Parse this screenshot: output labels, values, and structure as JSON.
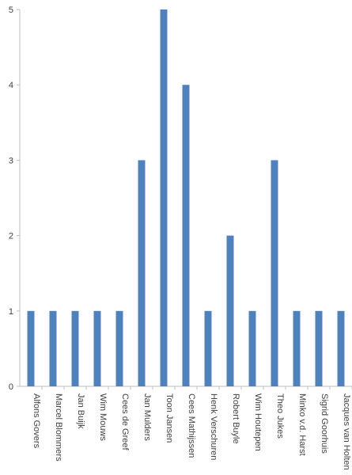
{
  "chart_data": {
    "type": "bar",
    "title": "",
    "xlabel": "",
    "ylabel": "",
    "ylim": [
      0,
      5
    ],
    "yticks": [
      0,
      1,
      2,
      3,
      4,
      5
    ],
    "grid": false,
    "legend": "none",
    "bar_color": "#4F81BD",
    "categories": [
      "Alfons Govers",
      "Marcel Blommers",
      "Jan Buijk",
      "Wim Mouws",
      "Cees de Greef",
      "Jan Mulders",
      "Toon Jansen",
      "Cees Mathijssen",
      "Henk Verschuren",
      "Robert Buyle",
      "Wim Houtepen",
      "Theo Jukes",
      "Minko v.d. Harst",
      "Sigrid Goorhuis",
      "Jacques van Holten"
    ],
    "values": [
      1,
      1,
      1,
      1,
      1,
      3,
      5,
      4,
      1,
      2,
      1,
      3,
      1,
      1,
      1
    ]
  }
}
